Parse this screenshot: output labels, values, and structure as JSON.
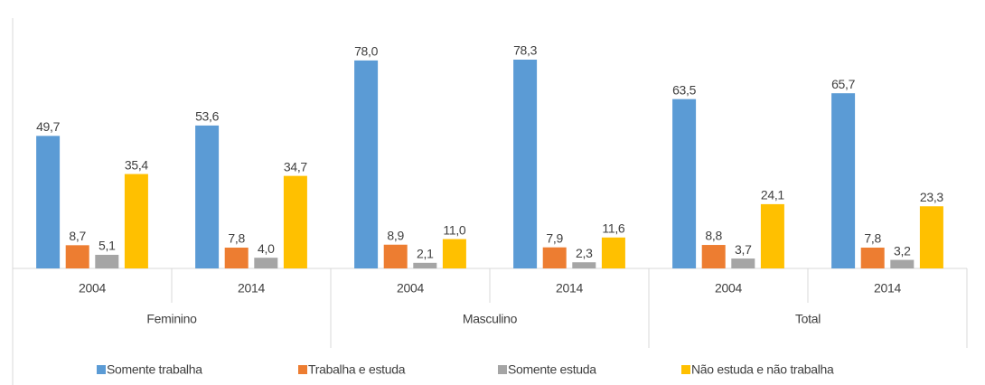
{
  "chart_data": {
    "type": "bar",
    "groups": [
      "Feminino",
      "Masculino",
      "Total"
    ],
    "categories": [
      "2004",
      "2014",
      "2004",
      "2014",
      "2004",
      "2014"
    ],
    "series": [
      {
        "name": "Somente trabalha",
        "color": "#5b9bd5",
        "values": [
          49.7,
          53.6,
          78.0,
          78.3,
          63.5,
          65.7
        ],
        "value_labels": [
          "49,7",
          "53,6",
          "78,0",
          "78,3",
          "63,5",
          "65,7"
        ]
      },
      {
        "name": "Trabalha e estuda",
        "color": "#ed7d31",
        "values": [
          8.7,
          7.8,
          8.9,
          7.9,
          8.8,
          7.8
        ],
        "value_labels": [
          "8,7",
          "7,8",
          "8,9",
          "7,9",
          "8,8",
          "7,8"
        ]
      },
      {
        "name": "Somente estuda",
        "color": "#a5a5a5",
        "values": [
          5.1,
          4.0,
          2.1,
          2.3,
          3.7,
          3.2
        ],
        "value_labels": [
          "5,1",
          "4,0",
          "2,1",
          "2,3",
          "3,7",
          "3,2"
        ]
      },
      {
        "name": "Não estuda e não trabalha",
        "color": "#ffc000",
        "values": [
          35.4,
          34.7,
          11.0,
          11.6,
          24.1,
          23.3
        ],
        "value_labels": [
          "35,4",
          "34,7",
          "11,0",
          "11,6",
          "24,1",
          "23,3"
        ]
      }
    ],
    "legend": "bottom"
  }
}
